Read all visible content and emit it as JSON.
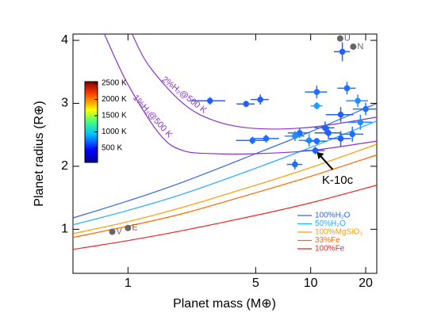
{
  "chart_data": {
    "type": "scatter",
    "xlabel": "Planet mass (M⊕)",
    "ylabel": "Planet radius (R⊕)",
    "xscale": "log",
    "xlim": [
      0.5,
      23
    ],
    "ylim": [
      0.3,
      4.1
    ],
    "xticks": [
      1,
      5,
      10,
      20
    ],
    "yticks": [
      1,
      2,
      3,
      4
    ],
    "points": {
      "x": [
        2.81,
        4.43,
        5.3,
        10.8,
        15.8,
        18.1,
        10.8,
        14.9,
        4.8,
        5.7,
        8.7,
        8.2,
        9.8,
        10.6,
        10.8,
        12.5,
        14.6,
        14.6,
        16.9,
        18.7,
        8.2,
        12.0,
        20
      ],
      "y": [
        3.04,
        2.99,
        3.06,
        3.18,
        3.24,
        3.04,
        2.96,
        3.82,
        2.41,
        2.44,
        2.53,
        2.48,
        2.41,
        2.25,
        2.4,
        2.53,
        2.82,
        2.44,
        2.51,
        2.7,
        2.03,
        2.61,
        2.91
      ],
      "xerr": [
        0.6,
        0.5,
        0.6,
        1.5,
        1.8,
        2.5,
        0.8,
        1.5,
        0.9,
        1.0,
        1.2,
        1.0,
        1.2,
        1.3,
        1.5,
        2.0,
        2.5,
        2.0,
        2.5,
        3.0,
        0.8,
        1.5,
        3.0
      ],
      "yerr": [
        0.06,
        0.05,
        0.08,
        0.1,
        0.1,
        0.1,
        0.06,
        0.15,
        0.06,
        0.06,
        0.08,
        0.08,
        0.1,
        0.06,
        0.05,
        0.1,
        0.12,
        0.12,
        0.12,
        0.12,
        0.08,
        0.1,
        0.1
      ],
      "colors": [
        "#1f5fff",
        "#1f5fff",
        "#1f5fff",
        "#1f6fff",
        "#1f6fff",
        "#1f8fff",
        "#1fa0ff",
        "#1f5fff",
        "#1f6fff",
        "#1f6fff",
        "#1f6fff",
        "#1f8fff",
        "#1f8fff",
        "#1f5fff",
        "#1f6fff",
        "#1f5fff",
        "#1f5fff",
        "#1f5fff",
        "#1f6fff",
        "#1f8fff",
        "#1f6fff",
        "#1f5fff",
        "#1f6fff"
      ]
    },
    "solar_system": {
      "labels": [
        "V",
        "E",
        "U",
        "N"
      ],
      "x": [
        0.82,
        1.0,
        14.5,
        17.1
      ],
      "y": [
        0.96,
        1.02,
        4.03,
        3.9
      ],
      "color": "#666666"
    },
    "series": [
      {
        "name": "100%H₂O",
        "color": "#3366dd",
        "x": [
          0.5,
          1,
          2,
          5,
          10,
          23
        ],
        "y": [
          1.18,
          1.45,
          1.75,
          2.2,
          2.55,
          3.0
        ]
      },
      {
        "name": "50%H₂O",
        "color": "#22aaff",
        "x": [
          0.5,
          1,
          2,
          5,
          10,
          23
        ],
        "y": [
          1.07,
          1.3,
          1.56,
          1.97,
          2.3,
          2.72
        ]
      },
      {
        "name": "100%MgSiO₃",
        "color": "#ff9900",
        "x": [
          0.5,
          1,
          2,
          5,
          10,
          23
        ],
        "y": [
          0.93,
          1.12,
          1.35,
          1.7,
          1.98,
          2.35
        ]
      },
      {
        "name": "33%Fe",
        "color": "#ff6600",
        "x": [
          0.5,
          1,
          2,
          5,
          10,
          23
        ],
        "y": [
          0.87,
          1.05,
          1.25,
          1.58,
          1.84,
          2.18
        ]
      },
      {
        "name": "100%Fe",
        "color": "#ee2222",
        "x": [
          0.5,
          1,
          2,
          5,
          10,
          23
        ],
        "y": [
          0.68,
          0.82,
          0.98,
          1.22,
          1.42,
          1.7
        ]
      }
    ],
    "envelope_curves": [
      {
        "label": "2%H₂@500 K",
        "color": "#8833cc",
        "x": [
          1.05,
          1.3,
          2,
          3,
          5,
          10,
          23
        ],
        "y": [
          4.11,
          3.6,
          3.0,
          2.72,
          2.6,
          2.62,
          2.78
        ]
      },
      {
        "label": "1%H₂@500 K",
        "color": "#8833cc",
        "x": [
          0.74,
          1,
          1.5,
          2,
          3,
          5,
          10,
          23
        ],
        "y": [
          4.11,
          3.3,
          2.5,
          2.25,
          2.2,
          2.2,
          2.25,
          2.4
        ]
      }
    ],
    "colorbar": {
      "lim": [
        60,
        2550
      ],
      "ticks": [
        {
          "value": 2500,
          "label": "2500 K"
        },
        {
          "value": 2000,
          "label": "2000 K"
        },
        {
          "value": 1500,
          "label": "1500 K"
        },
        {
          "value": 1000,
          "label": "1000 K"
        },
        {
          "value": 500,
          "label": "500 K"
        }
      ]
    },
    "annotation": "K-10c"
  }
}
